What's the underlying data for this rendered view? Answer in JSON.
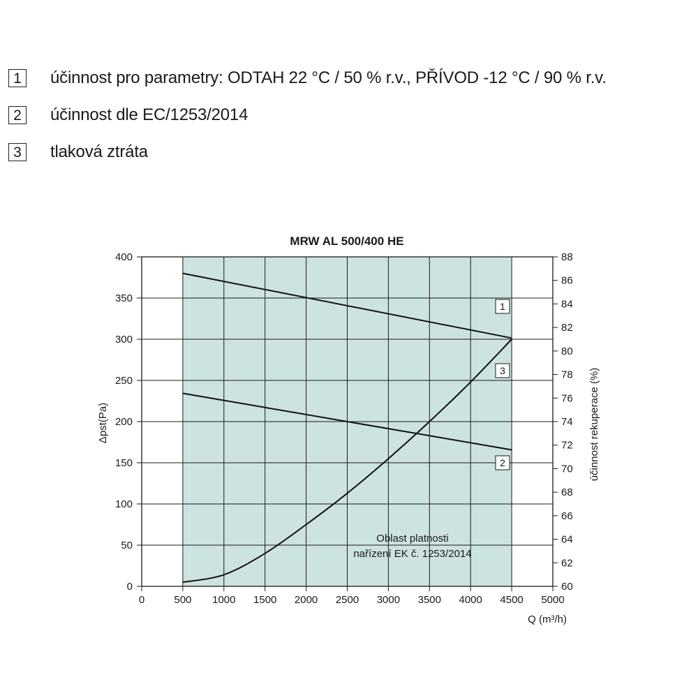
{
  "legend": [
    {
      "number": "1",
      "text": "účinnost pro parametry: ODTAH 22 °C / 50 % r.v., PŘÍVOD -12 °C / 90 % r.v."
    },
    {
      "number": "2",
      "text": "účinnost dle EC/1253/2014"
    },
    {
      "number": "3",
      "text": "tlaková ztráta"
    }
  ],
  "chart_data": {
    "type": "line",
    "title": "MRW AL 500/400 HE",
    "xlabel": "Q (m³/h)",
    "ylabel": "Δpst(Pa)",
    "y2label": "účinnost rekuperace (%)",
    "xlim": [
      0,
      5000
    ],
    "ylim": [
      0,
      400
    ],
    "y2lim": [
      60,
      88
    ],
    "x_ticks": [
      0,
      500,
      1000,
      1500,
      2000,
      2500,
      3000,
      3500,
      4000,
      4500,
      5000
    ],
    "y_ticks": [
      0,
      50,
      100,
      150,
      200,
      250,
      300,
      350,
      400
    ],
    "y2_ticks": [
      60,
      62,
      64,
      66,
      68,
      70,
      72,
      74,
      76,
      78,
      80,
      82,
      84,
      86,
      88
    ],
    "grid": true,
    "region": {
      "x": [
        500,
        4500
      ],
      "label": [
        "Oblast platnosti",
        "nařízení EK č. 1253/2014"
      ],
      "color": "#cce3e0"
    },
    "series": [
      {
        "name": "1",
        "axis": "right",
        "x": [
          500,
          4500
        ],
        "values": [
          86.6,
          81.1
        ]
      },
      {
        "name": "2",
        "axis": "right",
        "x": [
          500,
          4500
        ],
        "values": [
          76.4,
          71.6
        ]
      },
      {
        "name": "3",
        "axis": "left",
        "x": [
          500,
          1000,
          1500,
          2000,
          2500,
          3000,
          3500,
          4000,
          4500
        ],
        "values": [
          5,
          14,
          40,
          75,
          113,
          155,
          200,
          248,
          300
        ]
      }
    ]
  }
}
